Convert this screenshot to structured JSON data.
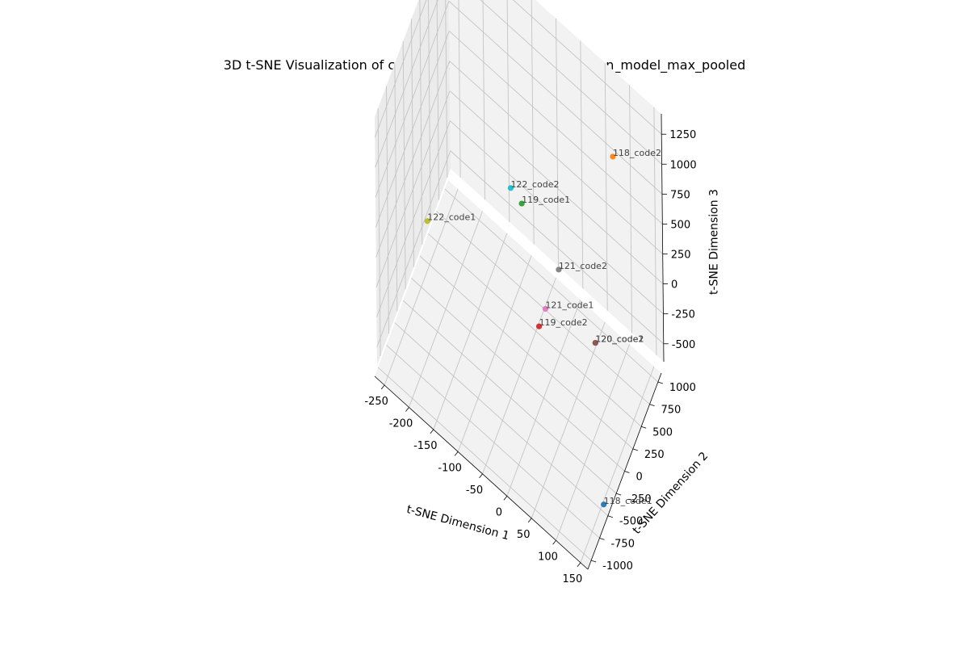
{
  "colors": {
    "pane": "#f2f2f2",
    "pane_side": "#ebebeb",
    "grid": "#c4c4c4",
    "axis": "#000000"
  },
  "chart_data": {
    "type": "scatter",
    "title": "3D t-SNE Visualization of code_embeddings_clone_detection_model_max_pooled",
    "xlabel": "t-SNE Dimension 1",
    "ylabel": "t-SNE Dimension 2",
    "zlabel": "t-SNE Dimension 3",
    "xlim": [
      -270,
      165
    ],
    "ylim": [
      -1100,
      1100
    ],
    "zlim": [
      -650,
      1420
    ],
    "xticks": [
      -250,
      -200,
      -150,
      -100,
      -50,
      0,
      50,
      100,
      150
    ],
    "yticks": [
      -1000,
      -750,
      -500,
      -250,
      0,
      250,
      500,
      750,
      1000
    ],
    "zticks": [
      -500,
      -250,
      0,
      250,
      500,
      750,
      1000,
      1250
    ],
    "grid": true,
    "points": [
      {
        "label": "118_code1",
        "x": 155,
        "y": -550,
        "z": -650,
        "color": "#1f77b4"
      },
      {
        "label": "118_code2",
        "x": 65,
        "y": 1090,
        "z": 700,
        "color": "#ff7f0e"
      },
      {
        "label": "119_code1",
        "x": -5,
        "y": -590,
        "z": 1300,
        "color": "#2ca02c"
      },
      {
        "label": "119_code2",
        "x": 0,
        "y": -190,
        "z": -5,
        "color": "#d62728"
      },
      {
        "label": "120_code1",
        "x": 50,
        "y": 740,
        "z": -650,
        "color": "#9467bd"
      },
      {
        "label": "120_code2",
        "x": 50,
        "y": 740,
        "z": -650,
        "color": "#8c564b"
      },
      {
        "label": "121_code1",
        "x": 0,
        "y": 0,
        "z": 0,
        "color": "#e377c2"
      },
      {
        "label": "121_code2",
        "x": 0,
        "y": 400,
        "z": 30,
        "color": "#7f7f7f"
      },
      {
        "label": "122_code1",
        "x": -230,
        "y": -160,
        "z": 0,
        "color": "#bcbd22"
      },
      {
        "label": "122_code2",
        "x": -105,
        "y": 510,
        "z": 240,
        "color": "#17becf"
      }
    ]
  }
}
